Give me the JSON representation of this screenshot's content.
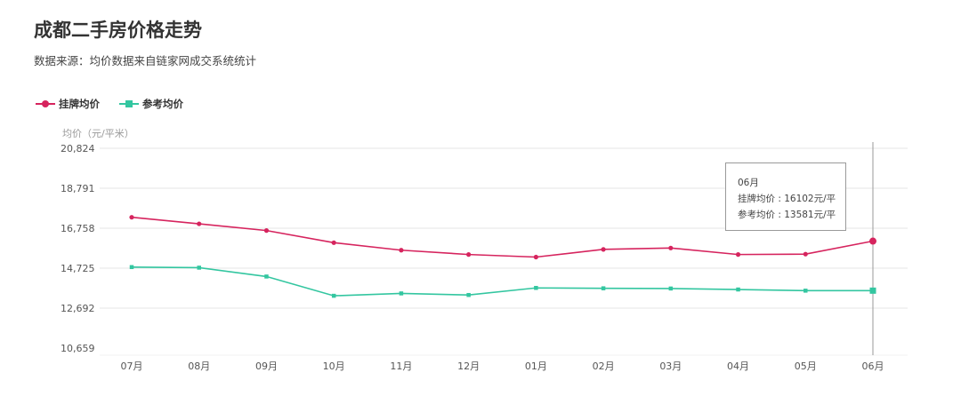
{
  "title": "成都二手房价格走势",
  "subtitle": "数据来源：均价数据来自链家网成交系统统计",
  "tooltip": {
    "header": "06月",
    "lines": [
      "挂牌均价 : 16102元/平",
      "参考均价 : 13581元/平"
    ]
  },
  "colors": {
    "listing": "#d6245e",
    "reference": "#33c6a0",
    "grid": "#e6e6e6",
    "crosshair": "#999999"
  },
  "chart_data": {
    "type": "line",
    "ylabel": "均价（元/平米）",
    "xlabel": "",
    "categories": [
      "07月",
      "08月",
      "09月",
      "10月",
      "11月",
      "12月",
      "01月",
      "02月",
      "03月",
      "04月",
      "05月",
      "06月"
    ],
    "yticks": [
      "20,824",
      "18,791",
      "16,758",
      "14,725",
      "12,692",
      "10,659"
    ],
    "ylim": [
      10659,
      20824
    ],
    "legend_position": "top-left",
    "crosshair_category": "06月",
    "series": [
      {
        "name": "挂牌均价",
        "marker": "circle",
        "values": [
          17315,
          16980,
          16640,
          16020,
          15640,
          15420,
          15290,
          15680,
          15750,
          15420,
          15440,
          16102
        ]
      },
      {
        "name": "参考均价",
        "marker": "square",
        "values": [
          14780,
          14750,
          14300,
          13320,
          13440,
          13360,
          13720,
          13700,
          13690,
          13640,
          13580,
          13581
        ]
      }
    ]
  }
}
